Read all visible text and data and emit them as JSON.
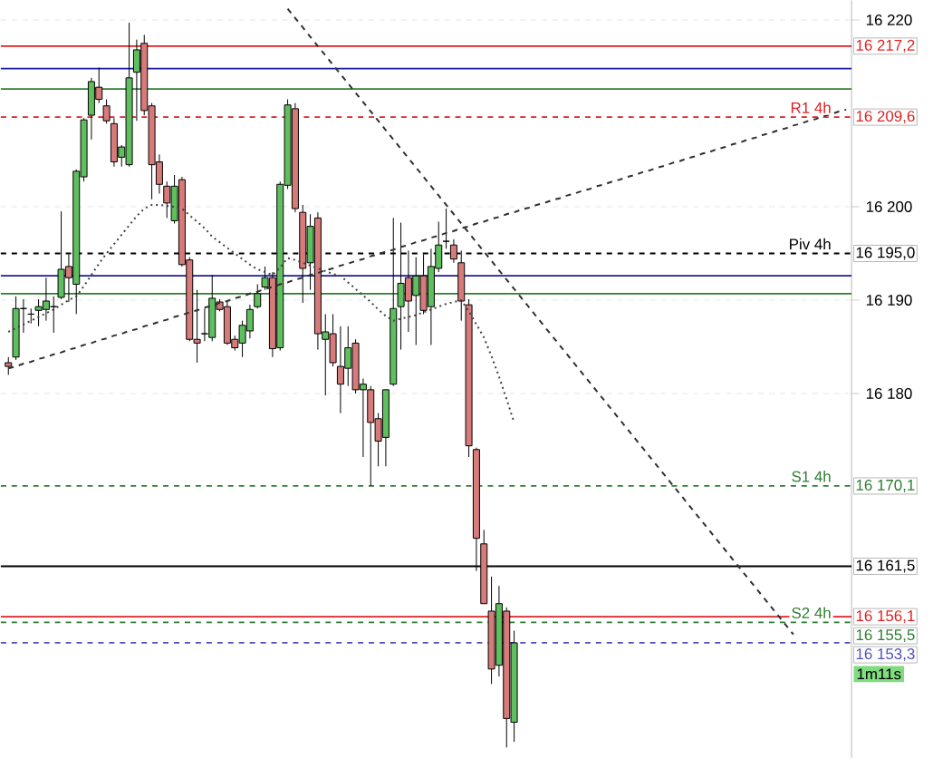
{
  "chart_data": {
    "type": "candlestick",
    "categories": [
      null,
      null,
      null,
      null,
      null,
      null,
      null,
      null,
      null,
      null,
      null,
      null,
      null,
      null,
      null,
      null,
      null,
      null,
      null,
      null,
      null,
      null,
      null,
      null,
      null,
      null,
      null,
      null,
      null,
      null,
      null,
      null,
      null,
      null,
      null,
      null,
      null,
      null,
      null,
      null,
      null,
      null,
      null,
      null,
      null,
      null,
      null,
      null,
      null,
      null,
      null,
      null,
      null,
      null,
      null,
      null,
      null,
      null,
      null,
      null,
      null,
      null,
      null,
      null,
      null,
      null,
      null,
      null,
      null,
      null,
      null,
      null,
      null,
      null,
      null,
      null,
      null,
      null,
      null,
      null,
      null,
      null,
      null,
      null,
      null,
      null,
      null,
      null,
      null,
      null,
      null,
      null,
      null,
      null,
      null,
      null,
      null,
      null,
      null,
      null,
      null,
      null,
      null,
      null,
      null,
      null,
      null,
      null,
      null,
      null,
      null,
      null
    ],
    "ohlc": [
      [
        16183.3,
        16183.9,
        16182.0,
        16182.9
      ],
      [
        16183.9,
        16190.4,
        16183.6,
        16189.1
      ],
      [
        16189.1,
        16190.1,
        16186.5,
        16189.1
      ],
      [
        16188.5,
        16189.1,
        16187.5,
        16188.5
      ],
      [
        16188.9,
        16190.1,
        16187.2,
        16189.3
      ],
      [
        16189.0,
        16192.4,
        16187.8,
        16189.9
      ],
      [
        16189.3,
        16190.4,
        16186.5,
        16189.3
      ],
      [
        16190.3,
        16199.5,
        16190.1,
        16193.3
      ],
      [
        16193.6,
        16194.9,
        16189.8,
        16192.4
      ],
      [
        16191.7,
        16204.0,
        16188.5,
        16203.8
      ],
      [
        16203.2,
        16209.5,
        16202.7,
        16209.3
      ],
      [
        16209.8,
        16213.8,
        16207.2,
        16213.4
      ],
      [
        16212.8,
        16214.9,
        16211.1,
        16211.5
      ],
      [
        16210.8,
        16211.5,
        16208.9,
        16209.2
      ],
      [
        16208.9,
        16209.5,
        16204.3,
        16204.8
      ],
      [
        16205.3,
        16206.6,
        16204.3,
        16206.4
      ],
      [
        16204.5,
        16219.7,
        16204.3,
        16213.8
      ],
      [
        16214.4,
        16217.9,
        16209.2,
        16216.8
      ],
      [
        16217.5,
        16218.4,
        16209.8,
        16210.3
      ],
      [
        16210.8,
        16211.1,
        16200.8,
        16204.5
      ],
      [
        16204.8,
        16205.6,
        16201.4,
        16202.4
      ],
      [
        16202.2,
        16202.7,
        16198.8,
        16200.4
      ],
      [
        16198.5,
        16203.4,
        16198.2,
        16202.2
      ],
      [
        16202.9,
        16203.2,
        16193.6,
        16193.8
      ],
      [
        16194.3,
        16194.6,
        16185.6,
        16185.8
      ],
      [
        16185.8,
        16191.1,
        16183.3,
        16185.4
      ],
      [
        16186.4,
        16189.1,
        16185.6,
        16186.4
      ],
      [
        16186.0,
        16192.7,
        16185.6,
        16190.2
      ],
      [
        16189.8,
        16190.1,
        16188.8,
        16189.0
      ],
      [
        16189.3,
        16189.8,
        16185.2,
        16185.4
      ],
      [
        16185.8,
        16186.2,
        16184.6,
        16184.9
      ],
      [
        16185.4,
        16187.8,
        16183.9,
        16187.3
      ],
      [
        16186.7,
        16189.5,
        16185.9,
        16189.0
      ],
      [
        16189.3,
        16191.7,
        16189.1,
        16190.7
      ],
      [
        16191.4,
        16193.6,
        16191.1,
        16192.4
      ],
      [
        16192.4,
        16193.0,
        16183.9,
        16184.8
      ],
      [
        16184.9,
        16202.7,
        16184.6,
        16202.4
      ],
      [
        16202.3,
        16211.5,
        16201.9,
        16210.9
      ],
      [
        16210.5,
        16211.1,
        16199.4,
        16199.8
      ],
      [
        16199.4,
        16200.2,
        16189.7,
        16193.4
      ],
      [
        16194.0,
        16199.2,
        16191.1,
        16197.9
      ],
      [
        16198.8,
        16199.4,
        16184.7,
        16186.4
      ],
      [
        16185.8,
        16188.5,
        16179.8,
        16186.6
      ],
      [
        16186.4,
        16188.5,
        16182.9,
        16183.3
      ],
      [
        16182.9,
        16187.2,
        16177.9,
        16181.0
      ],
      [
        16182.7,
        16187.2,
        16180.8,
        16184.9
      ],
      [
        16185.4,
        16185.8,
        16180.0,
        16180.4
      ],
      [
        16180.4,
        16181.6,
        16173.2,
        16181.0
      ],
      [
        16180.4,
        16180.8,
        16170.1,
        16176.9
      ],
      [
        16177.3,
        16177.9,
        16172.2,
        16174.9
      ],
      [
        16175.3,
        16180.4,
        16172.2,
        16180.4
      ],
      [
        16181.0,
        16198.8,
        16180.8,
        16189.1
      ],
      [
        16189.3,
        16198.3,
        16184.7,
        16191.8
      ],
      [
        16192.4,
        16195.3,
        16186.6,
        16189.9
      ],
      [
        16190.5,
        16194.6,
        16185.2,
        16192.6
      ],
      [
        16192.6,
        16194.9,
        16188.5,
        16188.9
      ],
      [
        16189.3,
        16195.5,
        16185.2,
        16193.6
      ],
      [
        16193.4,
        16198.4,
        16193.0,
        16195.9
      ],
      [
        16196.3,
        16199.8,
        16195.5,
        16196.3
      ],
      [
        16195.9,
        16196.5,
        16194.0,
        16194.4
      ],
      [
        16194.0,
        16195.3,
        16187.8,
        16189.9
      ],
      [
        16189.5,
        16190.1,
        16173.2,
        16174.4
      ],
      [
        16174.0,
        16174.2,
        16161.0,
        16164.5
      ],
      [
        16163.9,
        16165.4,
        16157.5,
        16157.5
      ],
      [
        16156.7,
        16160.4,
        16148.9,
        16150.5
      ],
      [
        16150.9,
        16159.4,
        16149.7,
        16157.5
      ],
      [
        16156.7,
        16157.1,
        16142.1,
        16145.2
      ],
      [
        16144.8,
        16154.6,
        16142.7,
        16153.3
      ],
      null,
      null,
      null,
      null,
      null,
      null,
      null,
      null,
      null,
      null,
      null,
      null,
      null,
      null,
      null,
      null,
      null,
      null,
      null,
      null,
      null,
      null,
      null,
      null,
      null,
      null,
      null,
      null,
      null,
      null,
      null,
      null,
      null,
      null,
      null,
      null,
      null,
      null,
      null,
      null,
      null,
      null,
      null,
      null
    ],
    "colors": [
      "#d67a7a",
      "#5fbf5f",
      "#000000",
      "#000000",
      "#5fbf5f",
      "#5fbf5f",
      "#000000",
      "#5fbf5f",
      "#d67a7a",
      "#5fbf5f",
      "#5fbf5f",
      "#5fbf5f",
      "#d67a7a",
      "#d67a7a",
      "#d67a7a",
      "#5fbf5f",
      "#5fbf5f",
      "#5fbf5f",
      "#d67a7a",
      "#d67a7a",
      "#d67a7a",
      "#d67a7a",
      "#5fbf5f",
      "#d67a7a",
      "#d67a7a",
      "#d67a7a",
      "#000000",
      "#5fbf5f",
      "#d67a7a",
      "#d67a7a",
      "#d67a7a",
      "#5fbf5f",
      "#5fbf5f",
      "#5fbf5f",
      "#5fbf5f",
      "#d67a7a",
      "#5fbf5f",
      "#5fbf5f",
      "#d67a7a",
      "#d67a7a",
      "#5fbf5f",
      "#d67a7a",
      "#5fbf5f",
      "#d67a7a",
      "#d67a7a",
      "#5fbf5f",
      "#d67a7a",
      "#5fbf5f",
      "#d67a7a",
      "#d67a7a",
      "#5fbf5f",
      "#5fbf5f",
      "#5fbf5f",
      "#d67a7a",
      "#5fbf5f",
      "#d67a7a",
      "#5fbf5f",
      "#5fbf5f",
      "#000000",
      "#d67a7a",
      "#d67a7a",
      "#d67a7a",
      "#d67a7a",
      "#d67a7a",
      "#d67a7a",
      "#5fbf5f",
      "#d67a7a",
      "#5fbf5f",
      null,
      null,
      null,
      null,
      null,
      null,
      null,
      null,
      null,
      null,
      null,
      null,
      null,
      null,
      null,
      null,
      null,
      null,
      null,
      null,
      null,
      null,
      null,
      null,
      null,
      null,
      null,
      null,
      null,
      null,
      null,
      null,
      null,
      null,
      null,
      null,
      null,
      null,
      null,
      null,
      null,
      null,
      null,
      null
    ],
    "series": [
      {
        "type": "line",
        "color": "#404040",
        "line_style": "dotted",
        "values": [
          16186.6,
          16187.0,
          16187.4,
          16187.8,
          16188.2,
          16188.6,
          16189.0,
          16189.5,
          16190.0,
          16190.4,
          16191.5,
          16192.7,
          16193.9,
          16195.0,
          16196.0,
          16197.0,
          16198.0,
          16199.0,
          16199.8,
          16200.2,
          16200.2,
          16200.1,
          16200.0,
          16199.8,
          16199.1,
          16198.4,
          16197.7,
          16196.8,
          16196.2,
          16195.6,
          16195.0,
          16194.4,
          16193.8,
          16193.3,
          16193.0,
          16192.7,
          16193.5,
          16194.5,
          16194.3,
          16194.0,
          16193.7,
          16193.4,
          16193.1,
          16192.8,
          16192.6,
          16191.9,
          16191.2,
          16190.5,
          16189.8,
          16189.0,
          16188.3,
          16187.8,
          16188.0,
          16188.2,
          16188.4,
          16188.7,
          16189.0,
          16189.3,
          16189.6,
          16189.8,
          16190.0,
          16188.8,
          16187.4,
          16186.0,
          16184.0,
          16181.8,
          16179.4,
          16176.9,
          null,
          null,
          null,
          null,
          null,
          null,
          null,
          null,
          null,
          null,
          null,
          null,
          null,
          null,
          null,
          null,
          null,
          null,
          null,
          null,
          null,
          null,
          null,
          null,
          null,
          null,
          null,
          null,
          null,
          null,
          null,
          null,
          null,
          null,
          null,
          null,
          null,
          null,
          null,
          null,
          null,
          null,
          null,
          null
        ]
      },
      {
        "type": "line",
        "color": "#303030",
        "line_style": "dashed",
        "values": [
          16182.7,
          16182.9,
          16183.2,
          16183.4,
          16183.7,
          16183.9,
          16184.2,
          16184.4,
          16184.7,
          16184.9,
          16185.2,
          16185.4,
          16185.7,
          16185.9,
          16186.2,
          16186.4,
          16186.7,
          16186.9,
          16187.2,
          16187.4,
          16187.7,
          16187.9,
          16188.2,
          16188.4,
          16188.7,
          16188.9,
          16189.2,
          16189.4,
          16189.7,
          16189.9,
          16190.2,
          16190.4,
          16190.7,
          16190.9,
          16191.2,
          16191.4,
          16191.7,
          16191.9,
          16192.2,
          16192.4,
          16192.7,
          16192.9,
          16193.2,
          16193.4,
          16193.7,
          16193.9,
          16194.2,
          16194.4,
          16194.7,
          16194.9,
          16195.2,
          16195.4,
          16195.7,
          16195.9,
          16196.2,
          16196.4,
          16196.7,
          16196.9,
          16197.2,
          16197.4,
          16197.7,
          16197.9,
          16198.2,
          16198.4,
          16198.7,
          16198.9,
          16199.2,
          16199.4,
          16199.7,
          16199.9,
          16200.2,
          16200.4,
          16200.7,
          16200.9,
          16201.2,
          16201.4,
          16201.7,
          16201.9,
          16202.2,
          16202.4,
          16202.7,
          16202.9,
          16203.2,
          16203.4,
          16203.7,
          16203.9,
          16204.2,
          16204.4,
          16204.7,
          16204.9,
          16205.2,
          16205.4,
          16205.7,
          16205.9,
          16206.2,
          16206.4,
          16206.7,
          16206.9,
          16207.2,
          16207.4,
          16207.7,
          16207.9,
          16208.2,
          16208.4,
          16208.7,
          16208.9,
          16209.2,
          16209.4,
          16209.7,
          16209.9,
          16210.2,
          16210.4
        ]
      },
      {
        "type": "line",
        "color": "#303030",
        "line_style": "dashed",
        "values": [
          null,
          null,
          null,
          null,
          null,
          null,
          null,
          null,
          null,
          null,
          null,
          null,
          null,
          null,
          null,
          null,
          null,
          null,
          null,
          null,
          null,
          null,
          null,
          null,
          null,
          null,
          null,
          null,
          null,
          null,
          null,
          null,
          null,
          null,
          null,
          null,
          null,
          16221.2,
          16220.2,
          16219.2,
          16218.2,
          16217.2,
          16216.2,
          16215.2,
          16214.2,
          16213.2,
          16212.2,
          16211.2,
          16210.2,
          16209.2,
          16208.2,
          16207.2,
          16206.2,
          16205.2,
          16204.2,
          16203.2,
          16202.2,
          16201.2,
          16200.2,
          16199.2,
          16198.2,
          16197.2,
          16196.2,
          16195.2,
          16194.2,
          16193.2,
          16192.2,
          16191.2,
          16190.2,
          16189.2,
          16188.2,
          16187.2,
          16186.2,
          16185.2,
          16184.2,
          16183.2,
          16182.2,
          16181.2,
          16180.2,
          16179.2,
          16178.2,
          16177.2,
          16176.2,
          16175.2,
          16174.2,
          16173.2,
          16172.2,
          16171.2,
          16170.2,
          16169.2,
          16168.2,
          16167.2,
          16166.2,
          16165.2,
          16164.2,
          16163.2,
          16162.2,
          16161.2,
          16160.2,
          16159.2,
          16158.2,
          16157.2,
          16156.2,
          16155.2,
          16154.2,
          null,
          null,
          null,
          null,
          null,
          null,
          null
        ]
      }
    ],
    "ylim": [
      16141,
      16222.1
    ],
    "yticks": [
      {
        "value": 16180,
        "label": "16 180"
      },
      {
        "value": 16190,
        "label": "16 190"
      },
      {
        "value": 16200,
        "label": "16 200"
      },
      {
        "value": 16220,
        "label": "16 220"
      }
    ],
    "tick_labels": "y",
    "grid": "y",
    "ref_lines": [
      {
        "axis": "y",
        "value": 16217.2,
        "label": "16 217,2",
        "color": "#e02020",
        "line_style": "solid"
      },
      {
        "axis": "y",
        "value": 16214.8,
        "color": "#1a1aa0",
        "line_style": "solid"
      },
      {
        "axis": "y",
        "value": 16212.6,
        "color": "#2e7d32",
        "line_style": "solid"
      },
      {
        "axis": "y",
        "value": 16209.6,
        "label": "16 209,6",
        "color": "#e02020",
        "line_style": "dashed"
      },
      {
        "axis": "y",
        "value": 16195.0,
        "label": "16 195,0",
        "color": "#000000",
        "line_style": "dashed"
      },
      {
        "axis": "y",
        "value": 16192.6,
        "color": "#1a1aa0",
        "line_style": "solid"
      },
      {
        "axis": "y",
        "value": 16190.7,
        "color": "#2e7d32",
        "line_style": "solid"
      },
      {
        "axis": "y",
        "value": 16170.1,
        "label": "16 170,1",
        "color": "#2e7d32",
        "line_style": "dashed"
      },
      {
        "axis": "y",
        "value": 16161.5,
        "label": "16 161,5",
        "color": "#000000",
        "line_style": "solid"
      },
      {
        "axis": "y",
        "value": 16156.1,
        "label": "16 156,1",
        "color": "#e02020",
        "line_style": "solid"
      },
      {
        "axis": "y",
        "value": 16155.5,
        "label": "16 155,5",
        "color": "#2e7d32",
        "line_style": "dashed"
      },
      {
        "axis": "y",
        "value": 16153.3,
        "label": "16 153,3",
        "color": "#5050c0",
        "line_style": "dashed"
      }
    ],
    "annotations": [
      {
        "text": "R1 4h",
        "y": 16209.6
      },
      {
        "text": "Piv 4h",
        "y": 16195.0
      },
      {
        "text": "S1 4h",
        "y": 16170.1
      },
      {
        "text": "S2 4h",
        "y": 16155.5
      },
      "1m11s"
    ]
  }
}
